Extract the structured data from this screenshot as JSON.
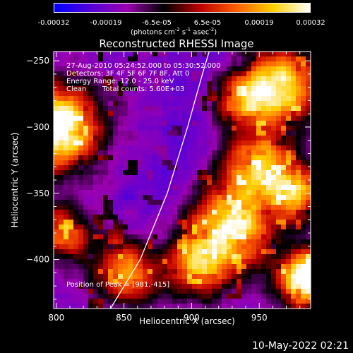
{
  "colorbar": {
    "ticks": [
      "-0.00032",
      "-0.00019",
      "-6.5e-05",
      "6.5e-05",
      "0.00019",
      "0.00032"
    ],
    "unit_prefix": "(photons cm",
    "unit_exp1": "-2",
    "unit_s": " s",
    "unit_exp2": "-1",
    "unit_asec": " asec",
    "unit_exp3": "-2",
    "unit_suffix": ")",
    "colors": [
      "#0000ff",
      "#5500d8",
      "#9a00b0",
      "#000000",
      "#c00000",
      "#ff6000",
      "#ffd000",
      "#ffffff"
    ]
  },
  "chart_data": {
    "type": "heatmap",
    "title": "Reconstructed RHESSI Image",
    "xlabel": "Heliocentric X (arcsec)",
    "ylabel": "Heliocentric Y (arcsec)",
    "xlim": [
      798,
      988
    ],
    "ylim": [
      -437,
      -243
    ],
    "xticks": [
      800,
      850,
      900,
      950
    ],
    "yticks": [
      -250,
      -300,
      -350,
      -400
    ],
    "limb_curve": [
      [
        840,
        -437
      ],
      [
        862,
        -400
      ],
      [
        882,
        -350
      ],
      [
        897,
        -300
      ],
      [
        908,
        -260
      ],
      [
        913,
        -243
      ]
    ],
    "peak": [
      981,
      -415
    ]
  },
  "annotations": {
    "time_range": "27-Aug-2010 05:24:52.000 to 05:30:52.000",
    "detectors": "Detectors: 3F 4F 5F 6F 7F 8F, Att 0",
    "energy": "Energy Range: 12.0 - 25.0 keV",
    "method": "Clean",
    "counts": "Total counts: 5.60E+03",
    "peak": "Position of Peak = [981,-415]"
  },
  "timestamp": "10-May-2022 02:21"
}
